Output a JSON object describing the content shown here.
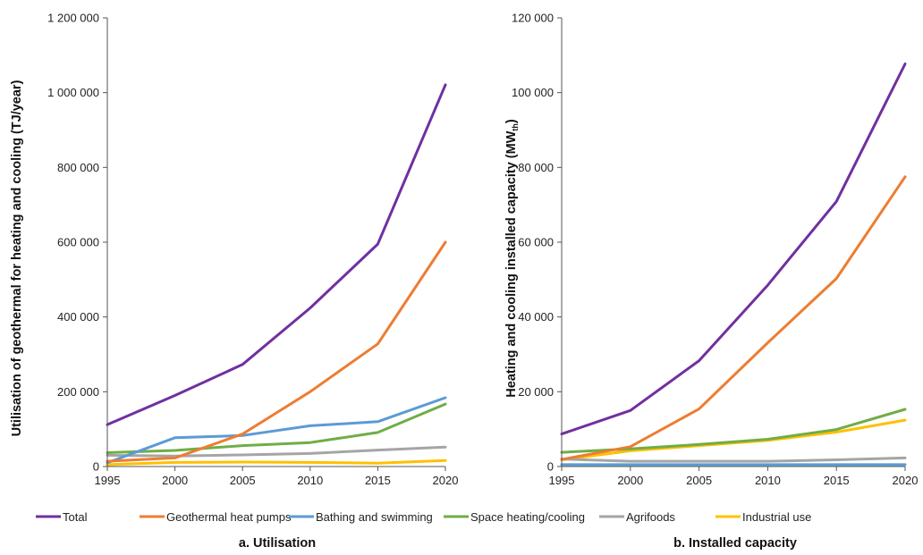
{
  "legend": [
    {
      "name": "Total",
      "color": "#7030a0"
    },
    {
      "name": "Geothermal heat pumps",
      "color": "#ed7d31"
    },
    {
      "name": "Bathing and swimming",
      "color": "#5b9bd5"
    },
    {
      "name": "Space heating/cooling",
      "color": "#70ad47"
    },
    {
      "name": "Agrifoods",
      "color": "#a5a5a5"
    },
    {
      "name": "Industrial use",
      "color": "#ffc000"
    }
  ],
  "chart_data": [
    {
      "type": "line",
      "caption": "a. Utilisation",
      "ylabel": "Utilisation of geothermal for heating and cooling (TJ/year)",
      "x": [
        "1995",
        "2000",
        "2005",
        "2010",
        "2015",
        "2020"
      ],
      "ylim": [
        0,
        1200000
      ],
      "yticks": [
        0,
        200000,
        400000,
        600000,
        800000,
        1000000,
        1200000
      ],
      "ytick_labels": [
        "0",
        "200 000",
        "400 000",
        "600 000",
        "800 000",
        "1 000 000",
        "1 200 000"
      ],
      "grid": false,
      "series": [
        {
          "name": "Total",
          "values": [
            112000,
            190000,
            273000,
            424000,
            595000,
            1021000
          ]
        },
        {
          "name": "Geothermal heat pumps",
          "values": [
            14000,
            23000,
            87000,
            200000,
            328000,
            600000
          ]
        },
        {
          "name": "Bathing and swimming",
          "values": [
            10000,
            77000,
            83000,
            109000,
            120000,
            184000
          ]
        },
        {
          "name": "Space heating/cooling",
          "values": [
            37000,
            43000,
            56000,
            64000,
            91000,
            167000
          ]
        },
        {
          "name": "Agrifoods",
          "values": [
            30000,
            28000,
            31000,
            35000,
            44000,
            52000
          ]
        },
        {
          "name": "Industrial use",
          "values": [
            5000,
            11000,
            12000,
            11000,
            9000,
            16000
          ]
        }
      ]
    },
    {
      "type": "line",
      "caption": "b. Installed capacity",
      "ylabel": "Heating and cooling installed capacity (MW",
      "ylabel_sub": "th",
      "ylabel_end": ")",
      "x": [
        "1995",
        "2000",
        "2005",
        "2010",
        "2015",
        "2020"
      ],
      "ylim": [
        0,
        120000
      ],
      "yticks": [
        0,
        20000,
        40000,
        60000,
        80000,
        100000,
        120000
      ],
      "ytick_labels": [
        "0",
        "20 000",
        "40 000",
        "60 000",
        "80 000",
        "100 000",
        "120 000"
      ],
      "grid": false,
      "series": [
        {
          "name": "Total",
          "values": [
            8700,
            15000,
            28300,
            48500,
            70900,
            107700
          ]
        },
        {
          "name": "Geothermal heat pumps",
          "values": [
            1900,
            5300,
            15400,
            33100,
            50300,
            77500
          ]
        },
        {
          "name": "Bathing and swimming",
          "values": [
            500,
            500,
            500,
            500,
            500,
            500
          ]
        },
        {
          "name": "Space heating/cooling",
          "values": [
            3800,
            4700,
            5900,
            7300,
            9900,
            15300
          ]
        },
        {
          "name": "Agrifoods",
          "values": [
            2000,
            1400,
            1400,
            1400,
            1800,
            2300
          ]
        },
        {
          "name": "Industrial use",
          "values": [
            1800,
            4200,
            5600,
            7000,
            9200,
            12400
          ]
        }
      ]
    }
  ]
}
